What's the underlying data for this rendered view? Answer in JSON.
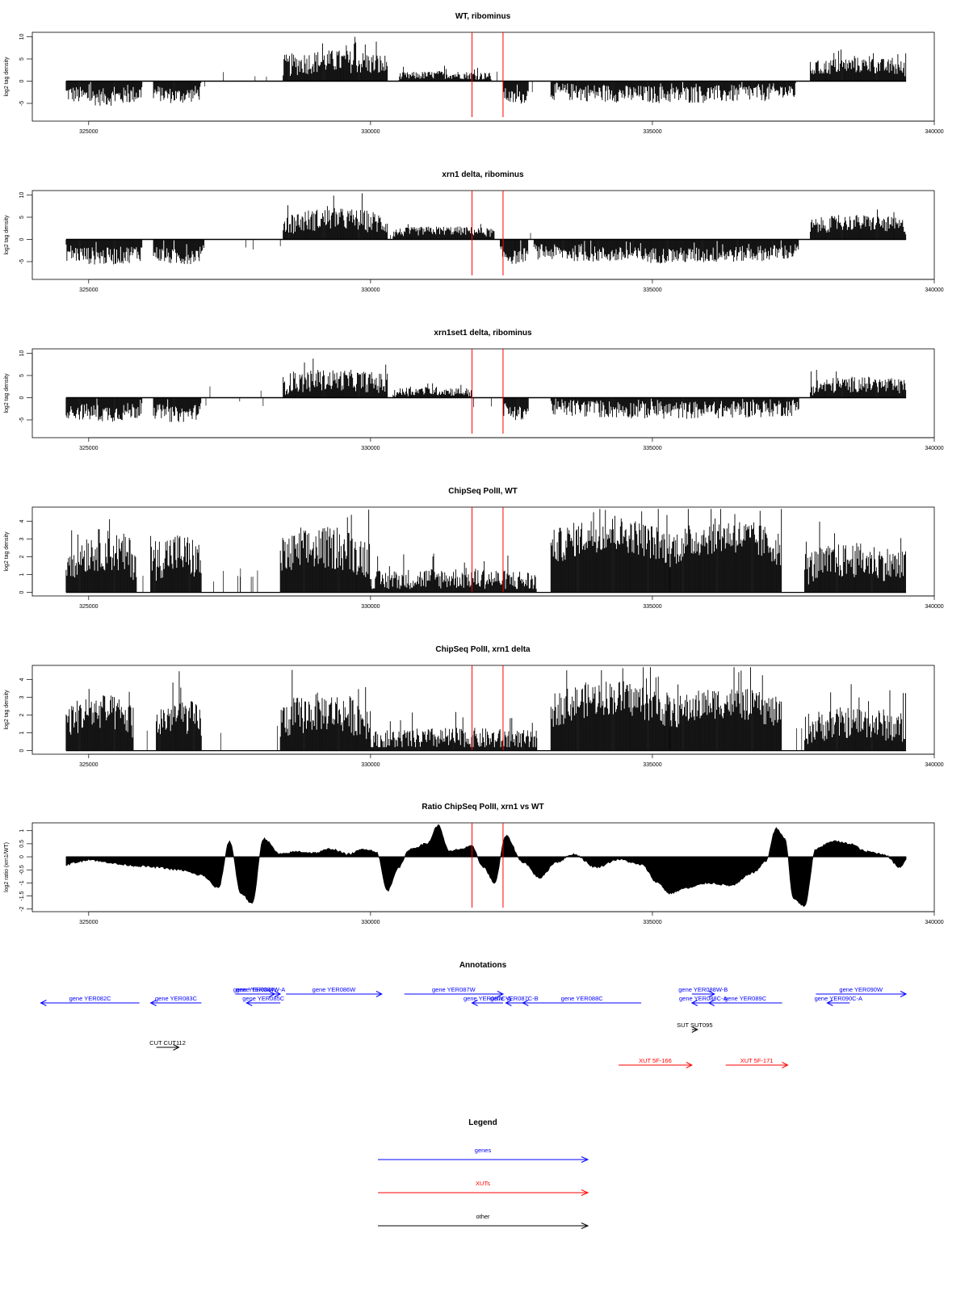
{
  "chart_data": [
    {
      "type": "bar",
      "title": "WT, ribominus",
      "ylabel": "log2 tag density",
      "xlim": [
        324000,
        340000
      ],
      "ylim": [
        -9,
        11
      ],
      "xticks": [
        325000,
        330000,
        335000,
        340000
      ],
      "yticks": [
        -5,
        0,
        5,
        10
      ],
      "grid": false,
      "markers_x": [
        331800,
        332350
      ],
      "segments": [
        {
          "start": 324600,
          "end": 325950,
          "mean": -3.6,
          "amp": 2.0,
          "sign": -1
        },
        {
          "start": 326150,
          "end": 327000,
          "mean": -3.3,
          "amp": 1.8,
          "sign": -1
        },
        {
          "start": 328450,
          "end": 330300,
          "mean": 4.5,
          "amp": 2.6,
          "sign": 1
        },
        {
          "start": 330500,
          "end": 332150,
          "mean": 1.4,
          "amp": 0.9,
          "sign": 1
        },
        {
          "start": 332350,
          "end": 332800,
          "mean": -3.8,
          "amp": 1.6,
          "sign": -1
        },
        {
          "start": 333200,
          "end": 337550,
          "mean": -3.0,
          "amp": 2.0,
          "sign": -1
        },
        {
          "start": 337800,
          "end": 339500,
          "mean": 3.6,
          "amp": 1.8,
          "sign": 1
        }
      ]
    },
    {
      "type": "bar",
      "title": "xrn1 delta, ribominus",
      "ylabel": "log2 tag density",
      "xlim": [
        324000,
        340000
      ],
      "ylim": [
        -9,
        11
      ],
      "xticks": [
        325000,
        330000,
        335000,
        340000
      ],
      "yticks": [
        -5,
        0,
        5,
        10
      ],
      "grid": false,
      "markers_x": [
        331800,
        332350
      ],
      "segments": [
        {
          "start": 324600,
          "end": 325950,
          "mean": -3.8,
          "amp": 2.0,
          "sign": -1
        },
        {
          "start": 326150,
          "end": 327050,
          "mean": -4.0,
          "amp": 1.8,
          "sign": -1
        },
        {
          "start": 328450,
          "end": 330300,
          "mean": 4.6,
          "amp": 2.5,
          "sign": 1
        },
        {
          "start": 330400,
          "end": 332200,
          "mean": 2.0,
          "amp": 1.0,
          "sign": 1
        },
        {
          "start": 332300,
          "end": 332800,
          "mean": -4.0,
          "amp": 1.6,
          "sign": -1
        },
        {
          "start": 332900,
          "end": 337600,
          "mean": -3.6,
          "amp": 1.8,
          "sign": -1
        },
        {
          "start": 337800,
          "end": 339500,
          "mean": 3.8,
          "amp": 1.8,
          "sign": 1
        }
      ]
    },
    {
      "type": "bar",
      "title": "xrn1set1 delta, ribominus",
      "ylabel": "log2 tag density",
      "xlim": [
        324000,
        340000
      ],
      "ylim": [
        -9,
        11
      ],
      "xticks": [
        325000,
        330000,
        335000,
        340000
      ],
      "yticks": [
        -5,
        0,
        5,
        10
      ],
      "grid": false,
      "markers_x": [
        331800,
        332350
      ],
      "segments": [
        {
          "start": 324600,
          "end": 325950,
          "mean": -3.5,
          "amp": 2.0,
          "sign": -1
        },
        {
          "start": 326150,
          "end": 327000,
          "mean": -3.8,
          "amp": 1.8,
          "sign": -1
        },
        {
          "start": 328450,
          "end": 330300,
          "mean": 4.0,
          "amp": 2.4,
          "sign": 1
        },
        {
          "start": 330400,
          "end": 331800,
          "mean": 1.5,
          "amp": 1.0,
          "sign": 1
        },
        {
          "start": 332350,
          "end": 332800,
          "mean": -3.6,
          "amp": 1.6,
          "sign": -1
        },
        {
          "start": 333200,
          "end": 337600,
          "mean": -2.8,
          "amp": 2.0,
          "sign": -1
        },
        {
          "start": 337800,
          "end": 339500,
          "mean": 3.0,
          "amp": 1.8,
          "sign": 1
        }
      ]
    },
    {
      "type": "bar",
      "title": "ChipSeq PolII, WT",
      "ylabel": "log2 tag density",
      "xlim": [
        324000,
        340000
      ],
      "ylim": [
        -0.2,
        4.8
      ],
      "xticks": [
        325000,
        330000,
        335000,
        340000
      ],
      "yticks": [
        0,
        1,
        2,
        3,
        4
      ],
      "grid": false,
      "markers_x": [
        331800,
        332350
      ],
      "segments": [
        {
          "start": 324600,
          "end": 325850,
          "mean": 2.4,
          "amp": 1.2,
          "sign": 1
        },
        {
          "start": 326100,
          "end": 327000,
          "mean": 2.2,
          "amp": 1.2,
          "sign": 1
        },
        {
          "start": 328400,
          "end": 330000,
          "mean": 2.5,
          "amp": 1.2,
          "sign": 1
        },
        {
          "start": 330000,
          "end": 332950,
          "mean": 0.8,
          "amp": 0.6,
          "sign": 1
        },
        {
          "start": 333200,
          "end": 335300,
          "mean": 3.3,
          "amp": 1.0,
          "sign": 1
        },
        {
          "start": 335300,
          "end": 337300,
          "mean": 3.2,
          "amp": 1.0,
          "sign": 1
        },
        {
          "start": 337700,
          "end": 339500,
          "mean": 1.8,
          "amp": 1.0,
          "sign": 1
        }
      ]
    },
    {
      "type": "bar",
      "title": "ChipSeq PolII, xrn1 delta",
      "ylabel": "log2 tag density",
      "xlim": [
        324000,
        340000
      ],
      "ylim": [
        -0.2,
        4.8
      ],
      "xticks": [
        325000,
        330000,
        335000,
        340000
      ],
      "yticks": [
        0,
        1,
        2,
        3,
        4
      ],
      "grid": false,
      "markers_x": [
        331800,
        332350
      ],
      "segments": [
        {
          "start": 324600,
          "end": 325800,
          "mean": 2.2,
          "amp": 1.0,
          "sign": 1
        },
        {
          "start": 326200,
          "end": 327000,
          "mean": 2.0,
          "amp": 1.0,
          "sign": 1
        },
        {
          "start": 328400,
          "end": 330000,
          "mean": 2.2,
          "amp": 1.1,
          "sign": 1
        },
        {
          "start": 330000,
          "end": 332950,
          "mean": 0.7,
          "amp": 0.6,
          "sign": 1
        },
        {
          "start": 333200,
          "end": 335300,
          "mean": 3.0,
          "amp": 1.0,
          "sign": 1
        },
        {
          "start": 335300,
          "end": 337300,
          "mean": 2.7,
          "amp": 0.9,
          "sign": 1
        },
        {
          "start": 337700,
          "end": 339500,
          "mean": 1.6,
          "amp": 0.9,
          "sign": 1
        }
      ]
    },
    {
      "type": "area",
      "title": "Ratio ChipSeq PolII, xrn1 vs WT",
      "ylabel": "log2 ratio (xrn1/WT)",
      "xlim": [
        324000,
        340000
      ],
      "ylim": [
        -2.1,
        1.3
      ],
      "xticks": [
        325000,
        330000,
        335000,
        340000
      ],
      "yticks": [
        -2.0,
        -1.5,
        -1.0,
        -0.5,
        0.0,
        0.5,
        1.0
      ],
      "grid": false,
      "markers_x": [
        331800,
        332350
      ],
      "x": [
        324600,
        324800,
        325000,
        325300,
        325600,
        325900,
        326200,
        326600,
        327000,
        327300,
        327500,
        327700,
        327900,
        328100,
        328400,
        328700,
        329000,
        329300,
        329600,
        329900,
        330100,
        330300,
        330500,
        330700,
        331000,
        331200,
        331400,
        331600,
        331800,
        332000,
        332200,
        332400,
        332700,
        333000,
        333300,
        333600,
        334000,
        334400,
        334800,
        335100,
        335300,
        335600,
        336000,
        336400,
        336800,
        337000,
        337200,
        337350,
        337500,
        337700,
        337900,
        338200,
        338500,
        338800,
        339100,
        339400,
        339500
      ],
      "y": [
        -0.3,
        -0.2,
        -0.1,
        -0.2,
        -0.3,
        -0.35,
        -0.4,
        -0.5,
        -0.7,
        -1.2,
        0.6,
        -1.4,
        -1.8,
        0.7,
        0.1,
        0.2,
        0.15,
        0.3,
        0.1,
        0.3,
        0.2,
        -1.3,
        -0.4,
        0.3,
        0.5,
        1.2,
        0.2,
        0.3,
        0.4,
        -0.4,
        -1.0,
        0.8,
        -0.2,
        -0.8,
        -0.2,
        0.1,
        -0.4,
        -0.1,
        -0.3,
        -1.0,
        -1.4,
        -1.2,
        -1.0,
        -1.1,
        -0.6,
        -0.2,
        1.1,
        0.7,
        -1.6,
        -1.9,
        0.3,
        0.6,
        0.5,
        0.2,
        0.1,
        -0.4,
        -0.1
      ]
    }
  ],
  "annotations": {
    "title": "Annotations",
    "items": [
      {
        "label": "gene YER082C",
        "start": 325900,
        "end": 324150,
        "color": "#0000ff",
        "row": 0
      },
      {
        "label": "gene YER083C",
        "start": 327000,
        "end": 326100,
        "color": "#0000ff",
        "row": 0
      },
      {
        "label": "gene YER084W",
        "start": 327600,
        "end": 328300,
        "color": "#0000ff",
        "row": -1
      },
      {
        "label": "gene YER084W-A",
        "start": 327700,
        "end": 328400,
        "color": "#0000ff",
        "row": -1
      },
      {
        "label": "gene YER085C",
        "start": 328400,
        "end": 327800,
        "color": "#0000ff",
        "row": 0
      },
      {
        "label": "gene YER086W",
        "start": 328500,
        "end": 330200,
        "color": "#0000ff",
        "row": -1
      },
      {
        "label": "gene YER087W",
        "start": 330600,
        "end": 332350,
        "color": "#0000ff",
        "row": -1
      },
      {
        "label": "gene YER087C-A",
        "start": 332350,
        "end": 331800,
        "color": "#0000ff",
        "row": 0
      },
      {
        "label": "gene YER087C-B",
        "start": 332700,
        "end": 332400,
        "color": "#0000ff",
        "row": 0
      },
      {
        "label": "gene YER088C",
        "start": 334800,
        "end": 332700,
        "color": "#0000ff",
        "row": 0
      },
      {
        "label": "gene YER088W-B",
        "start": 335700,
        "end": 336100,
        "color": "#0000ff",
        "row": -1
      },
      {
        "label": "gene YER088C-A",
        "start": 336100,
        "end": 335700,
        "color": "#0000ff",
        "row": 0
      },
      {
        "label": "gene YER089C",
        "start": 337300,
        "end": 336000,
        "color": "#0000ff",
        "row": 0
      },
      {
        "label": "gene YER090W",
        "start": 337900,
        "end": 339500,
        "color": "#0000ff",
        "row": -1
      },
      {
        "label": "gene YER090C-A",
        "start": 338500,
        "end": 338100,
        "color": "#0000ff",
        "row": 0
      },
      {
        "label": "SUT SUT095",
        "start": 335700,
        "end": 335800,
        "color": "#000000",
        "row": 3
      },
      {
        "label": "CUT CUT112",
        "start": 326200,
        "end": 326600,
        "color": "#000000",
        "row": 5
      },
      {
        "label": "XUT 5F-166",
        "start": 334400,
        "end": 335700,
        "color": "#ff0000",
        "row": 7
      },
      {
        "label": "XUT 5F-171",
        "start": 336300,
        "end": 337400,
        "color": "#ff0000",
        "row": 7
      }
    ]
  },
  "legend": {
    "title": "Legend",
    "entries": [
      {
        "label": "genes",
        "color": "#0000ff"
      },
      {
        "label": "XUTs",
        "color": "#ff0000"
      },
      {
        "label": "other",
        "color": "#000000"
      }
    ]
  }
}
